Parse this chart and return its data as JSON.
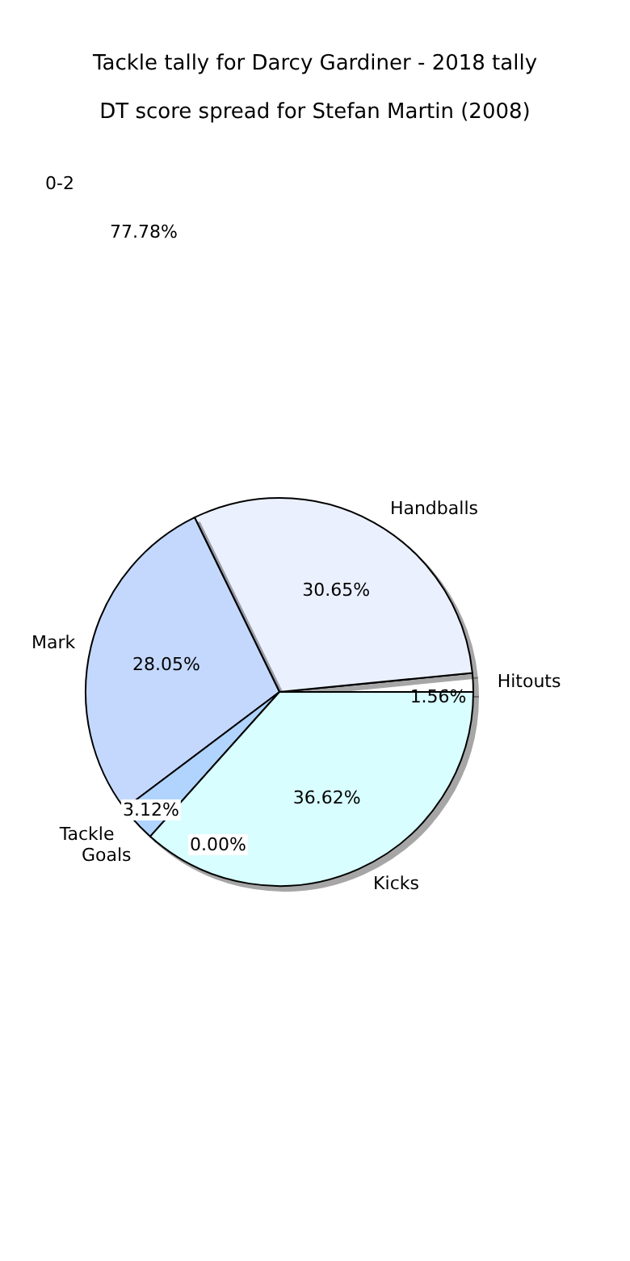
{
  "chart_data": {
    "type": "pie",
    "title": "Tackle tally for Darcy Gardiner - 2018 tally",
    "subtitle": "DT score spread for Stefan Martin (2008)",
    "categories": [
      "Hitouts",
      "Handballs",
      "Mark",
      "Tackle",
      "Goals",
      "Kicks"
    ],
    "values": [
      1.56,
      30.65,
      28.05,
      3.12,
      0.0,
      36.62
    ],
    "value_labels": [
      "1.56%",
      "30.65%",
      "28.05%",
      "3.12%",
      "0.00%",
      "36.62%"
    ],
    "colors": [
      "#ffffff",
      "#eaf0fe",
      "#c4d8fe",
      "#b0d4fe",
      "#b0d4fe",
      "#d8feff"
    ],
    "annotations": [
      "0-2",
      "77.78%"
    ],
    "legend": false
  }
}
